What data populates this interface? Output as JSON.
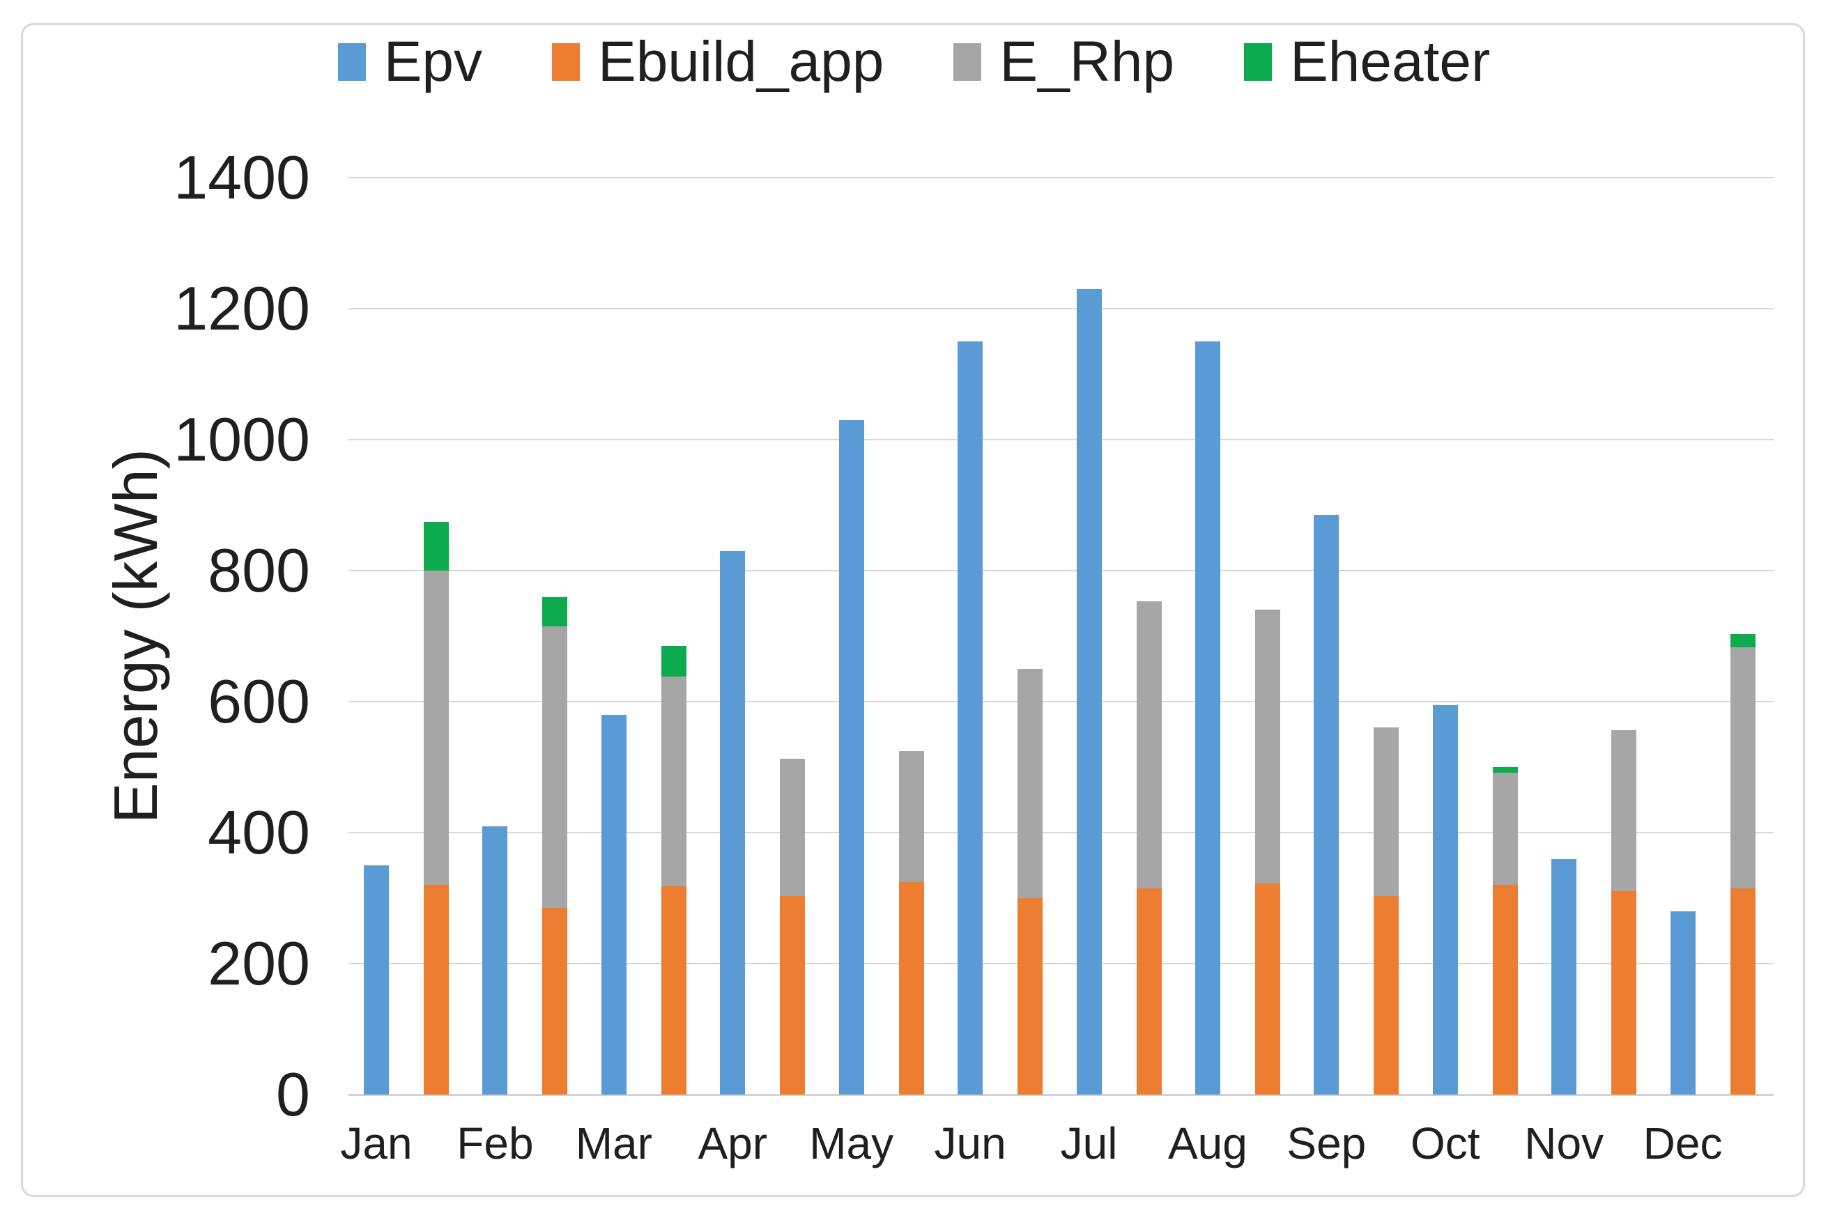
{
  "figure": {
    "background": "#ffffff",
    "frame_border_color": "#D9D9D9"
  },
  "legend": {
    "position": "top",
    "items": [
      {
        "label": "Epv",
        "color": "#5B9BD5"
      },
      {
        "label": "Ebuild_app",
        "color": "#ED7D31"
      },
      {
        "label": "E_Rhp",
        "color": "#A6A6A6"
      },
      {
        "label": "Eheater",
        "color": "#0CAC4E"
      }
    ]
  },
  "y_axis": {
    "title": "Energy (kWh)",
    "ticks": [
      "0",
      "200",
      "400",
      "600",
      "800",
      "1000",
      "1200",
      "1400"
    ],
    "tick_values": [
      0,
      200,
      400,
      600,
      800,
      1000,
      1200,
      1400
    ],
    "min": 0,
    "max": 1400,
    "gridline_color": "#D9D9D9",
    "text_color": "#1F1F1F"
  },
  "x_axis": {
    "labels": [
      "Jan",
      "Feb",
      "Mar",
      "Apr",
      "May",
      "Jun",
      "Jul",
      "Aug",
      "Sep",
      "Oct",
      "Nov",
      "Dec"
    ]
  },
  "chart_data": {
    "type": "bar",
    "title": "",
    "xlabel": "",
    "ylabel": "Energy (kWh)",
    "ylim": [
      0,
      1400
    ],
    "grid": true,
    "legend_position": "top",
    "categories": [
      "Jan",
      "Feb",
      "Mar",
      "Apr",
      "May",
      "Jun",
      "Jul",
      "Aug",
      "Sep",
      "Oct",
      "Nov",
      "Dec"
    ],
    "series": [
      {
        "name": "Epv",
        "color": "#5B9BD5",
        "stack": "none",
        "values": [
          350,
          410,
          580,
          830,
          1030,
          1150,
          1230,
          1150,
          885,
          595,
          360,
          280
        ]
      },
      {
        "name": "Ebuild_app",
        "color": "#ED7D31",
        "stack": "demand",
        "values": [
          320,
          285,
          318,
          303,
          325,
          300,
          315,
          322,
          303,
          320,
          311,
          315
        ]
      },
      {
        "name": "E_Rhp",
        "color": "#A6A6A6",
        "stack": "demand",
        "values": [
          480,
          430,
          320,
          210,
          200,
          350,
          438,
          418,
          258,
          172,
          245,
          368
        ]
      },
      {
        "name": "Eheater",
        "color": "#0CAC4E",
        "stack": "demand",
        "values": [
          75,
          45,
          47,
          0,
          0,
          0,
          0,
          0,
          0,
          8,
          0,
          20
        ]
      }
    ]
  }
}
